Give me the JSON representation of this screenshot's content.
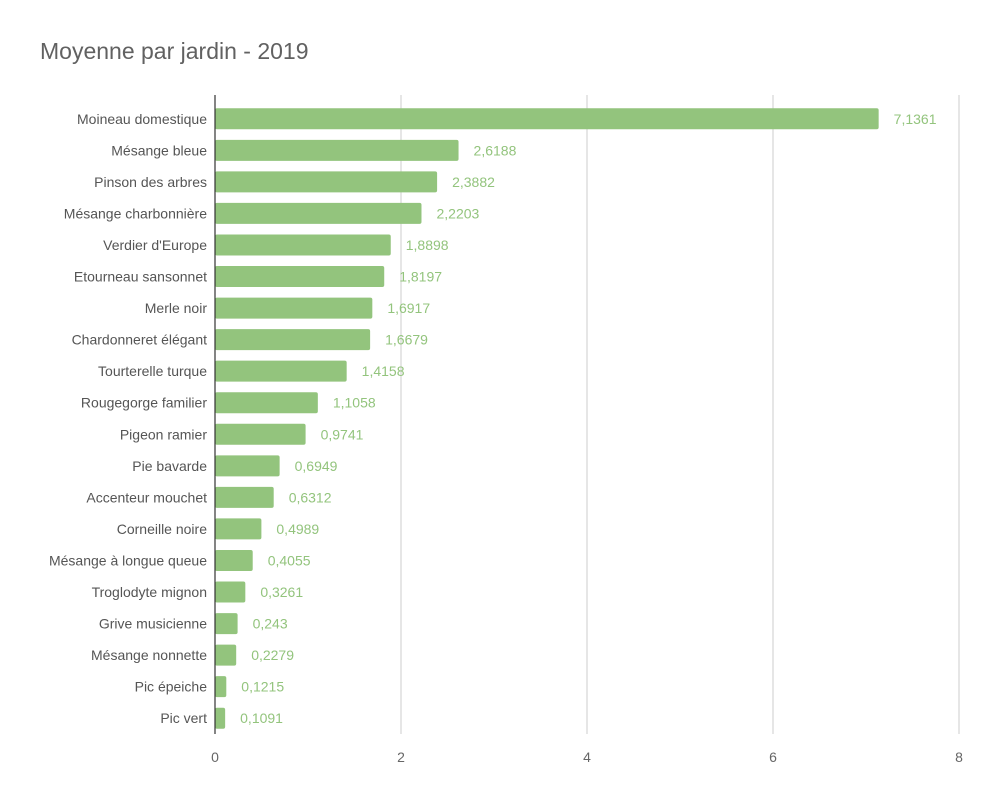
{
  "chart_data": {
    "type": "bar",
    "orientation": "horizontal",
    "title": "Moyenne par jardin - 2019",
    "xlabel": "",
    "ylabel": "",
    "xlim": [
      0,
      8
    ],
    "x_ticks": [
      "0",
      "2",
      "4",
      "6",
      "8"
    ],
    "grid": true,
    "legend": "none",
    "bar_color": "#93c47d",
    "label_color": "#93c47d",
    "categories": [
      "Moineau domestique",
      "Mésange bleue",
      "Pinson des arbres",
      "Mésange charbonnière",
      "Verdier d'Europe",
      "Etourneau sansonnet",
      "Merle noir",
      "Chardonneret élégant",
      "Tourterelle turque",
      "Rougegorge familier",
      "Pigeon ramier",
      "Pie bavarde",
      "Accenteur mouchet",
      "Corneille noire",
      "Mésange à longue queue",
      "Troglodyte mignon",
      "Grive musicienne",
      "Mésange nonnette",
      "Pic épeiche",
      "Pic vert"
    ],
    "values": [
      7.1361,
      2.6188,
      2.3882,
      2.2203,
      1.8898,
      1.8197,
      1.6917,
      1.6679,
      1.4158,
      1.1058,
      0.9741,
      0.6949,
      0.6312,
      0.4989,
      0.4055,
      0.3261,
      0.243,
      0.2279,
      0.1215,
      0.1091
    ],
    "value_labels": [
      "7,1361",
      "2,6188",
      "2,3882",
      "2,2203",
      "1,8898",
      "1,8197",
      "1,6917",
      "1,6679",
      "1,4158",
      "1,1058",
      "0,9741",
      "0,6949",
      "0,6312",
      "0,4989",
      "0,4055",
      "0,3261",
      "0,243",
      "0,2279",
      "0,1215",
      "0,1091"
    ]
  }
}
